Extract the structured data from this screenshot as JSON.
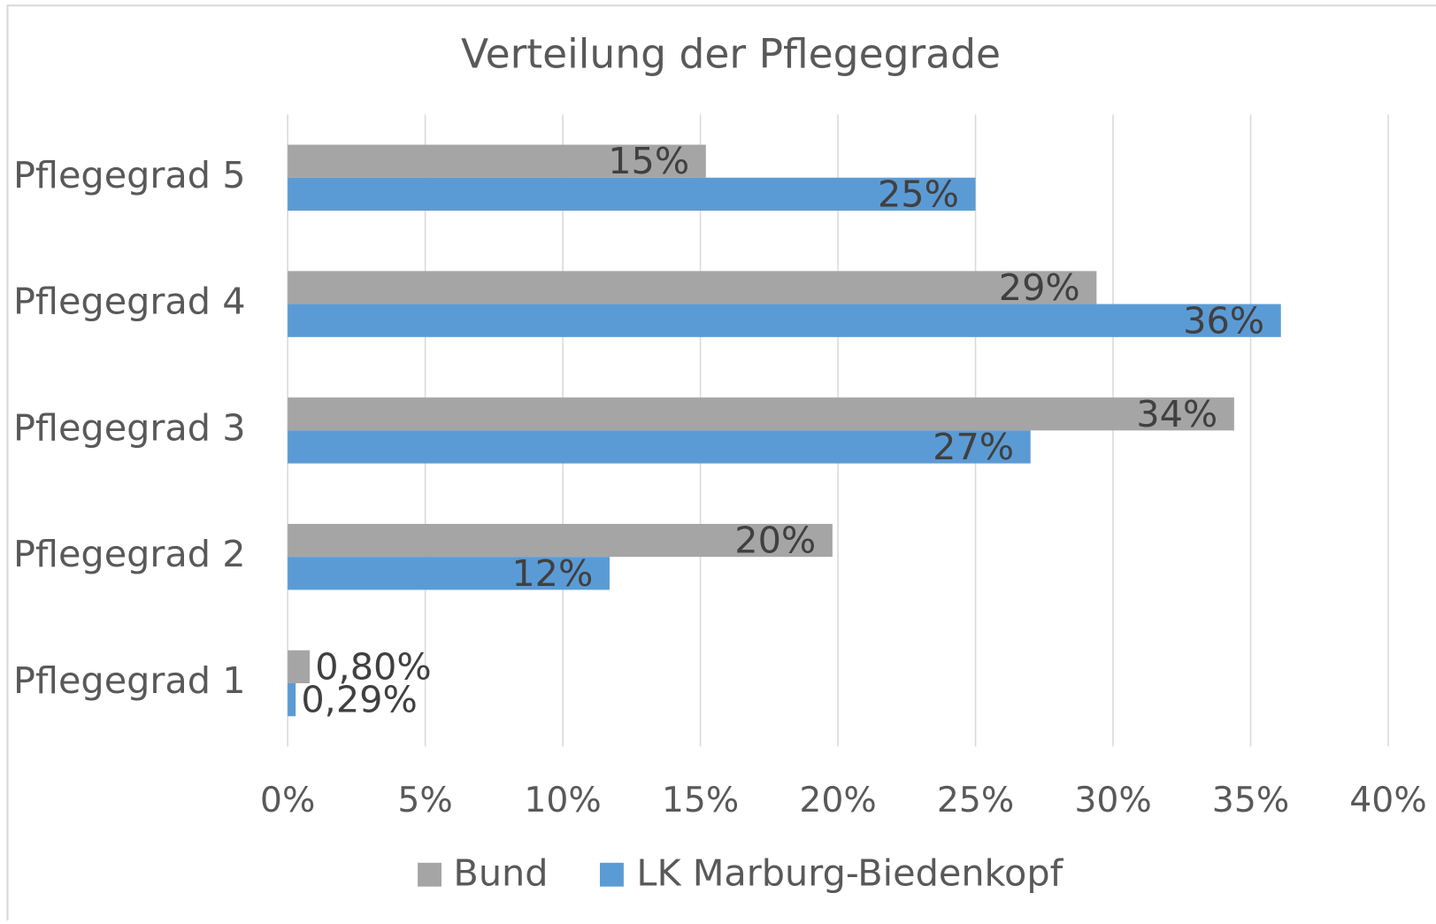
{
  "chart_data": {
    "type": "hbar",
    "title": "Verteilung der Pflegegrade",
    "categories": [
      "Pflegegrad 5",
      "Pflegegrad 4",
      "Pflegegrad 3",
      "Pflegegrad 2",
      "Pflegegrad 1"
    ],
    "series": [
      {
        "name": "Bund",
        "color": "#a5a5a5",
        "values": [
          15.2,
          29.4,
          34.4,
          19.8,
          0.8
        ],
        "value_labels": [
          "15%",
          "29%",
          "34%",
          "20%",
          "0,80%"
        ]
      },
      {
        "name": "LK Marburg-Biedenkopf",
        "color": "#5b9bd5",
        "values": [
          25.0,
          36.1,
          27.0,
          11.7,
          0.29
        ],
        "value_labels": [
          "25%",
          "36%",
          "27%",
          "12%",
          "0,29%"
        ]
      }
    ],
    "xlim": [
      0,
      40
    ],
    "xticks": [
      {
        "value": 0,
        "label": "0%"
      },
      {
        "value": 5,
        "label": "5%"
      },
      {
        "value": 10,
        "label": "10%"
      },
      {
        "value": 15,
        "label": "15%"
      },
      {
        "value": 20,
        "label": "20%"
      },
      {
        "value": 25,
        "label": "25%"
      },
      {
        "value": 30,
        "label": "30%"
      },
      {
        "value": 35,
        "label": "35%"
      },
      {
        "value": 40,
        "label": "40%"
      }
    ],
    "grid": true,
    "legend": "bottom"
  }
}
